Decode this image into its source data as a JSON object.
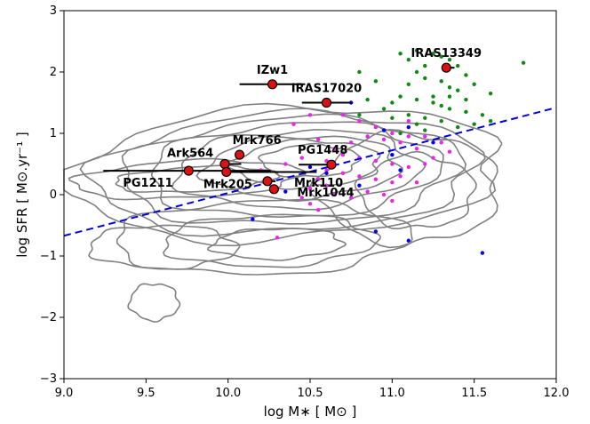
{
  "chart_data": {
    "type": "scatter",
    "xlabel": "log M∗ [ M⊙ ]",
    "ylabel": "log SFR [ M⊙.yr⁻¹ ]",
    "xlim": [
      9.0,
      12.0
    ],
    "ylim": [
      -3,
      3
    ],
    "xticks": [
      "9.0",
      "9.5",
      "10.0",
      "10.5",
      "11.0",
      "11.5",
      "12.0"
    ],
    "yticks": [
      "−3",
      "−2",
      "−1",
      "0",
      "1",
      "2",
      "3"
    ],
    "grid": false,
    "fit_line": {
      "style": "dashed",
      "color": "#0000dd",
      "x": [
        9.0,
        12.0
      ],
      "y": [
        -0.67,
        1.42
      ]
    },
    "targets": {
      "color": "#dd1111",
      "points": [
        {
          "name": "IZw1",
          "x": 10.27,
          "y": 1.8,
          "xerr": [
            0.2,
            0.2
          ]
        },
        {
          "name": "IRAS13349",
          "x": 11.33,
          "y": 2.07,
          "xerr": [
            0.0,
            0.05
          ]
        },
        {
          "name": "IRAS17020",
          "x": 10.6,
          "y": 1.5,
          "xerr": [
            0.15,
            0.15
          ]
        },
        {
          "name": "Mrk766",
          "x": 10.07,
          "y": 0.65,
          "xerr": [
            0.0,
            0.0
          ]
        },
        {
          "name": "Ark564",
          "x": 9.98,
          "y": 0.5,
          "xerr": [
            0.0,
            0.1
          ]
        },
        {
          "name": "PG1211",
          "x": 9.76,
          "y": 0.39,
          "xerr": [
            0.52,
            0.5
          ]
        },
        {
          "name": "Mrk205",
          "x": 9.99,
          "y": 0.37,
          "xerr": [
            0.0,
            0.55
          ]
        },
        {
          "name": "PG1448",
          "x": 10.63,
          "y": 0.49,
          "xerr": [
            0.2,
            0.0
          ]
        },
        {
          "name": "Mrk110",
          "x": 10.24,
          "y": 0.22,
          "xerr": [
            0.0,
            0.05
          ]
        },
        {
          "name": "Mrk1044",
          "x": 10.28,
          "y": 0.09,
          "xerr": [
            0.0,
            0.0
          ]
        }
      ]
    },
    "contour_color": "#808080",
    "background_series": [
      {
        "color": "#118811",
        "points": [
          [
            11.05,
            2.3
          ],
          [
            11.1,
            2.2
          ],
          [
            11.15,
            2.35
          ],
          [
            11.2,
            2.1
          ],
          [
            11.25,
            2.3
          ],
          [
            11.3,
            2.25
          ],
          [
            11.35,
            2.2
          ],
          [
            11.4,
            2.1
          ],
          [
            11.45,
            1.95
          ],
          [
            11.15,
            2.0
          ],
          [
            11.2,
            1.9
          ],
          [
            11.3,
            1.85
          ],
          [
            11.35,
            1.75
          ],
          [
            11.4,
            1.7
          ],
          [
            11.5,
            1.8
          ],
          [
            11.6,
            1.65
          ],
          [
            11.8,
            2.15
          ],
          [
            11.1,
            1.8
          ],
          [
            11.05,
            1.6
          ],
          [
            11.15,
            1.55
          ],
          [
            11.25,
            1.5
          ],
          [
            11.35,
            1.4
          ],
          [
            11.45,
            1.35
          ],
          [
            11.55,
            1.3
          ],
          [
            11.0,
            1.5
          ],
          [
            10.95,
            1.4
          ],
          [
            11.1,
            1.3
          ],
          [
            11.2,
            1.25
          ],
          [
            11.3,
            1.2
          ],
          [
            11.4,
            1.1
          ],
          [
            11.25,
            1.6
          ],
          [
            11.3,
            1.45
          ],
          [
            11.5,
            1.15
          ],
          [
            11.6,
            1.2
          ],
          [
            11.2,
            1.05
          ],
          [
            10.8,
            1.3
          ],
          [
            10.8,
            2.0
          ],
          [
            10.9,
            1.85
          ],
          [
            10.85,
            1.55
          ],
          [
            11.0,
            1.25
          ],
          [
            11.45,
            1.55
          ],
          [
            11.35,
            1.6
          ],
          [
            11.05,
            1.0
          ],
          [
            11.15,
            1.15
          ]
        ]
      },
      {
        "color": "#ee22ee",
        "points": [
          [
            10.7,
            1.3
          ],
          [
            10.8,
            1.2
          ],
          [
            10.9,
            1.1
          ],
          [
            11.0,
            1.0
          ],
          [
            10.95,
            0.9
          ],
          [
            11.05,
            0.85
          ],
          [
            11.1,
            0.95
          ],
          [
            11.15,
            0.75
          ],
          [
            10.85,
            0.95
          ],
          [
            10.75,
            0.85
          ],
          [
            10.65,
            0.75
          ],
          [
            10.7,
            0.65
          ],
          [
            10.8,
            0.6
          ],
          [
            10.9,
            0.55
          ],
          [
            11.0,
            0.5
          ],
          [
            11.1,
            0.45
          ],
          [
            11.2,
            0.5
          ],
          [
            11.25,
            0.6
          ],
          [
            10.6,
            0.4
          ],
          [
            10.7,
            0.35
          ],
          [
            10.8,
            0.3
          ],
          [
            10.9,
            0.25
          ],
          [
            11.0,
            0.2
          ],
          [
            10.55,
            0.25
          ],
          [
            10.6,
            0.15
          ],
          [
            10.5,
            0.1
          ],
          [
            10.45,
            -0.05
          ],
          [
            10.5,
            -0.15
          ],
          [
            10.55,
            -0.25
          ],
          [
            10.65,
            0.0
          ],
          [
            10.75,
            -0.05
          ],
          [
            10.85,
            0.05
          ],
          [
            10.4,
            1.15
          ],
          [
            10.5,
            1.3
          ],
          [
            10.55,
            0.9
          ],
          [
            11.1,
            1.2
          ],
          [
            11.2,
            0.95
          ],
          [
            11.3,
            0.85
          ],
          [
            11.35,
            0.7
          ],
          [
            11.05,
            0.3
          ],
          [
            10.95,
            0.0
          ],
          [
            11.0,
            -0.1
          ],
          [
            10.3,
            -0.7
          ],
          [
            10.2,
            0.4
          ],
          [
            10.35,
            0.5
          ],
          [
            10.45,
            0.6
          ],
          [
            10.6,
            0.55
          ],
          [
            11.15,
            0.2
          ]
        ]
      },
      {
        "color": "#0000ee",
        "points": [
          [
            11.55,
            -0.95
          ],
          [
            11.1,
            -0.75
          ],
          [
            10.9,
            -0.6
          ],
          [
            10.15,
            -0.4
          ],
          [
            10.35,
            0.05
          ],
          [
            10.6,
            0.35
          ],
          [
            10.8,
            0.15
          ],
          [
            11.0,
            0.65
          ],
          [
            10.95,
            1.05
          ],
          [
            10.75,
            1.5
          ],
          [
            11.1,
            1.1
          ],
          [
            11.25,
            0.85
          ],
          [
            11.05,
            0.4
          ],
          [
            10.5,
            0.45
          ]
        ]
      }
    ]
  }
}
